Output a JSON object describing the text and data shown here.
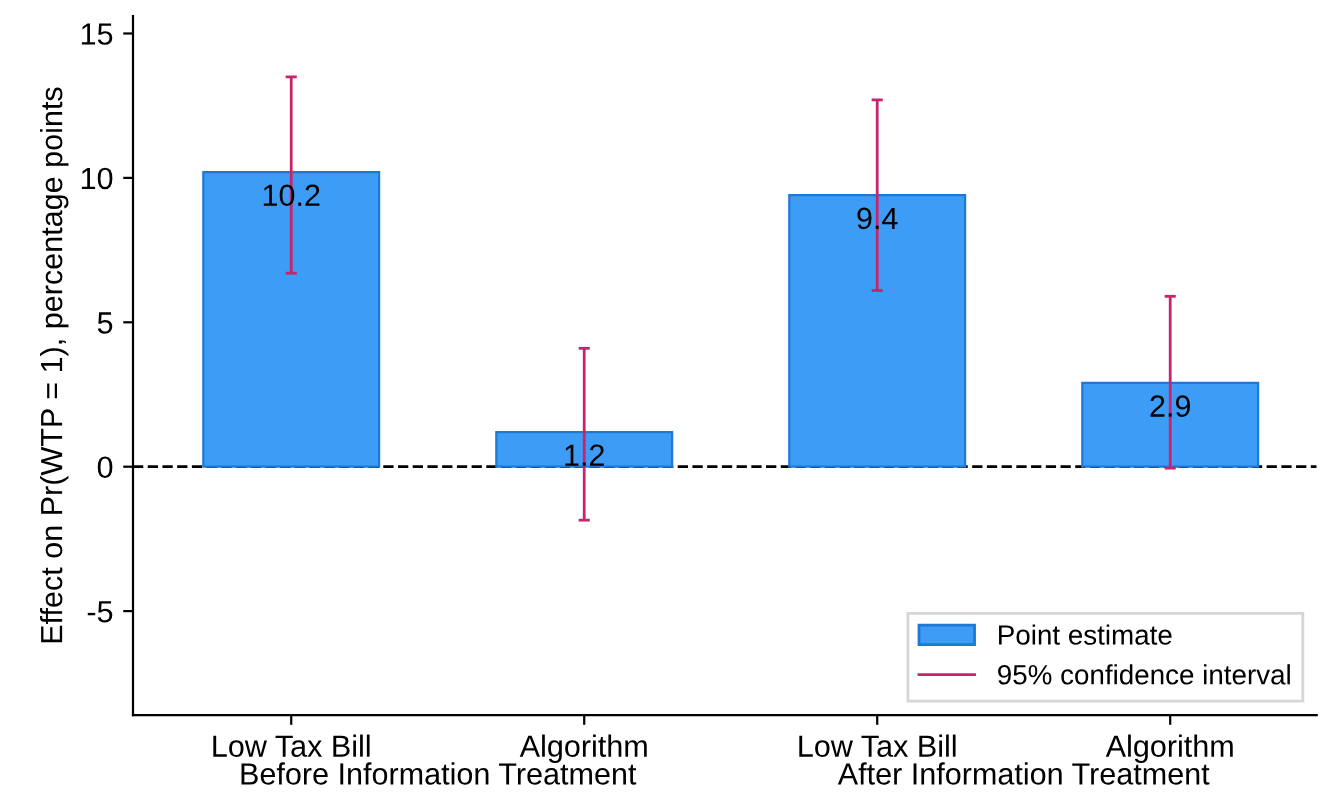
{
  "chart_data": {
    "type": "bar",
    "ylabel": "Effect on Pr(WTP = 1), percentage points",
    "categories": [
      "Low Tax Bill",
      "Algorithm",
      "Low Tax Bill",
      "Algorithm"
    ],
    "series": [
      {
        "name": "Point estimate",
        "color": "#3d9cf5",
        "values": [
          10.2,
          1.2,
          9.4,
          2.9
        ],
        "errors": [
          [
            6.7,
            13.5
          ],
          [
            -1.85,
            4.1
          ],
          [
            6.1,
            12.7
          ],
          [
            -0.05,
            5.9
          ]
        ]
      }
    ],
    "annotations": [
      "Before Information Treatment",
      "After Information Treatment",
      "95% confidence interval"
    ],
    "ylim": [
      -8.6,
      15.6
    ],
    "yticks": [
      -5,
      0,
      5,
      10,
      15
    ],
    "ref_lines": [
      {
        "axis": "y",
        "value": 0,
        "color": "#000000",
        "line_style": "dashed"
      }
    ],
    "data_labels": true,
    "grid": false,
    "legend": "bottom right"
  }
}
